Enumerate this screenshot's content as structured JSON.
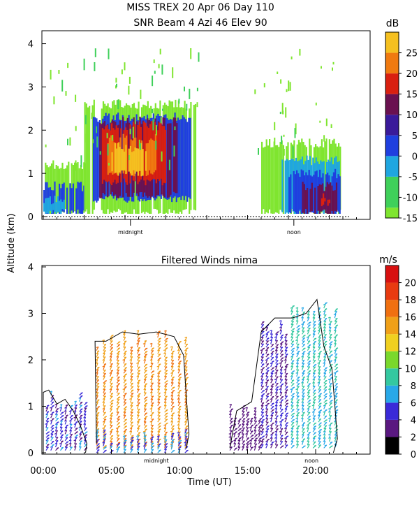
{
  "chart_data": [
    {
      "type": "heatmap",
      "title_lines": [
        "MISS TREX   20 Apr 06 Day 110",
        "SNR Beam 4 Azi  46 Elev 90"
      ],
      "ylabel": "Altitude (km)",
      "ylim": [
        0,
        4.3
      ],
      "xlim": [
        0,
        24
      ],
      "yticks": [
        0,
        1,
        2,
        3,
        4
      ],
      "grid": false,
      "x_markers": [
        {
          "label": "midnight",
          "x": 6.4
        },
        {
          "label": "noon",
          "x": 18.4
        }
      ],
      "colorbar": {
        "unit": "dB",
        "ticks": [
          -15,
          -10,
          -5,
          0,
          5,
          10,
          15,
          20,
          25
        ],
        "range": [
          -15,
          30
        ],
        "bands": [
          {
            "from": -15,
            "to": -12.5,
            "color": "#7fe52f"
          },
          {
            "from": -12.5,
            "to": -5,
            "color": "#3fd05a"
          },
          {
            "from": -5,
            "to": 0,
            "color": "#1fa6e0"
          },
          {
            "from": 0,
            "to": 5,
            "color": "#1f3fdf"
          },
          {
            "from": 5,
            "to": 10,
            "color": "#3a1a9a"
          },
          {
            "from": 10,
            "to": 15,
            "color": "#6a1150"
          },
          {
            "from": 15,
            "to": 20,
            "color": "#d92010"
          },
          {
            "from": 20,
            "to": 25,
            "color": "#f07a10"
          },
          {
            "from": 25,
            "to": 30,
            "color": "#f5c020"
          }
        ]
      },
      "regions": [
        {
          "x": [
            0,
            3.1
          ],
          "y": [
            0.1,
            1.2
          ],
          "value": -13
        },
        {
          "x": [
            0,
            3.0
          ],
          "y": [
            0.1,
            0.7
          ],
          "value": 2
        },
        {
          "x": [
            0,
            1.5
          ],
          "y": [
            0.1,
            0.4
          ],
          "value": -2
        },
        {
          "x": [
            3.0,
            11.2
          ],
          "y": [
            0.1,
            2.6
          ],
          "value": -13
        },
        {
          "x": [
            3.3,
            10.8
          ],
          "y": [
            0.4,
            2.3
          ],
          "value": 3
        },
        {
          "x": [
            4.0,
            9.8
          ],
          "y": [
            0.5,
            2.2
          ],
          "value": 11
        },
        {
          "x": [
            4.3,
            9.0
          ],
          "y": [
            0.8,
            2.1
          ],
          "value": 17
        },
        {
          "x": [
            4.7,
            8.2
          ],
          "y": [
            1.0,
            1.8
          ],
          "value": 22
        },
        {
          "x": [
            5.0,
            7.5
          ],
          "y": [
            1.0,
            1.6
          ],
          "value": 27
        },
        {
          "x": [
            16.0,
            21.8
          ],
          "y": [
            0.1,
            1.7
          ],
          "value": -13
        },
        {
          "x": [
            17.5,
            21.8
          ],
          "y": [
            0.1,
            1.3
          ],
          "value": -2
        },
        {
          "x": [
            18.0,
            21.8
          ],
          "y": [
            0.1,
            1.0
          ],
          "value": 4
        },
        {
          "x": [
            19.0,
            21.8
          ],
          "y": [
            0.1,
            0.7
          ],
          "value": 11
        },
        {
          "x": [
            20.4,
            21.0
          ],
          "y": [
            0.3,
            0.5
          ],
          "value": 17
        }
      ]
    },
    {
      "type": "scatter",
      "title": "Filtered Winds nima",
      "xlabel": "Time (UT)",
      "ylabel": "Altitude (km)",
      "xlim": [
        0,
        24
      ],
      "ylim": [
        0,
        4.0
      ],
      "xticks": [
        0,
        5,
        10,
        15,
        20
      ],
      "xtick_labels": [
        "00:00",
        "05:00",
        "10:00",
        "15:00",
        "20:00"
      ],
      "yticks": [
        0,
        1,
        2,
        3,
        4
      ],
      "grid": false,
      "x_markers": [
        {
          "label": "midnight",
          "x": 8.3
        },
        {
          "label": "noon",
          "x": 19.7
        }
      ],
      "colorbar": {
        "unit": "m/s",
        "ticks": [
          0,
          2,
          4,
          6,
          8,
          10,
          12,
          14,
          16,
          18,
          20
        ],
        "range": [
          0,
          22
        ],
        "bands": [
          {
            "from": 0,
            "to": 2,
            "color": "#000000"
          },
          {
            "from": 2,
            "to": 4,
            "color": "#5a1880"
          },
          {
            "from": 4,
            "to": 6,
            "color": "#3a2ad8"
          },
          {
            "from": 6,
            "to": 8,
            "color": "#28a8e8"
          },
          {
            "from": 8,
            "to": 10,
            "color": "#34c8a0"
          },
          {
            "from": 10,
            "to": 12,
            "color": "#7ad82c"
          },
          {
            "from": 12,
            "to": 14,
            "color": "#f0d020"
          },
          {
            "from": 14,
            "to": 16,
            "color": "#f0a018"
          },
          {
            "from": 16,
            "to": 18,
            "color": "#f07010"
          },
          {
            "from": 18,
            "to": 20,
            "color": "#e83a10"
          },
          {
            "from": 20,
            "to": 22,
            "color": "#d81010"
          }
        ]
      },
      "wind_regions": [
        {
          "x_start": 0.2,
          "x_end": 3.2,
          "x_step": 0.35,
          "alt_min": 0.05,
          "alt_max": 1.3,
          "speed": [
            3,
            7
          ]
        },
        {
          "x_start": 3.9,
          "x_end": 10.7,
          "x_step": 0.5,
          "alt_min": 0.1,
          "alt_max": 2.6,
          "speed": [
            14,
            17
          ]
        },
        {
          "x_start": 3.9,
          "x_end": 10.7,
          "x_step": 0.5,
          "alt_min": 0.0,
          "alt_max": 0.5,
          "speed": [
            4,
            8
          ]
        },
        {
          "x_start": 13.7,
          "x_end": 16.0,
          "x_step": 0.3,
          "alt_min": 0.05,
          "alt_max": 1.0,
          "speed": [
            2,
            4
          ]
        },
        {
          "x_start": 16.0,
          "x_end": 17.9,
          "x_step": 0.35,
          "alt_min": 0.1,
          "alt_max": 2.8,
          "speed": [
            3,
            5
          ]
        },
        {
          "x_start": 18.2,
          "x_end": 21.6,
          "x_step": 0.4,
          "alt_min": 0.1,
          "alt_max": 3.2,
          "speed": [
            6,
            10
          ]
        }
      ],
      "contours": [
        [
          [
            0.0,
            0.0
          ],
          [
            0.0,
            1.3
          ],
          [
            0.4,
            1.35
          ],
          [
            1.0,
            1.05
          ],
          [
            1.6,
            1.15
          ],
          [
            2.2,
            0.9
          ],
          [
            2.7,
            0.6
          ],
          [
            3.2,
            0.2
          ],
          [
            3.1,
            0.0
          ]
        ],
        [
          [
            3.9,
            0.2
          ],
          [
            3.8,
            2.4
          ],
          [
            4.6,
            2.4
          ],
          [
            5.8,
            2.6
          ],
          [
            7.0,
            2.55
          ],
          [
            8.3,
            2.6
          ],
          [
            9.6,
            2.5
          ],
          [
            10.3,
            2.1
          ],
          [
            10.5,
            1.2
          ],
          [
            10.7,
            0.4
          ],
          [
            10.5,
            0.1
          ]
        ],
        [
          [
            13.7,
            0.1
          ],
          [
            14.2,
            0.9
          ],
          [
            15.3,
            1.1
          ],
          [
            16.0,
            2.6
          ],
          [
            17.0,
            2.9
          ],
          [
            18.3,
            2.9
          ],
          [
            19.3,
            3.0
          ],
          [
            20.1,
            3.3
          ],
          [
            20.6,
            2.3
          ],
          [
            21.2,
            1.8
          ],
          [
            21.6,
            0.3
          ],
          [
            21.3,
            0.0
          ]
        ]
      ]
    }
  ]
}
